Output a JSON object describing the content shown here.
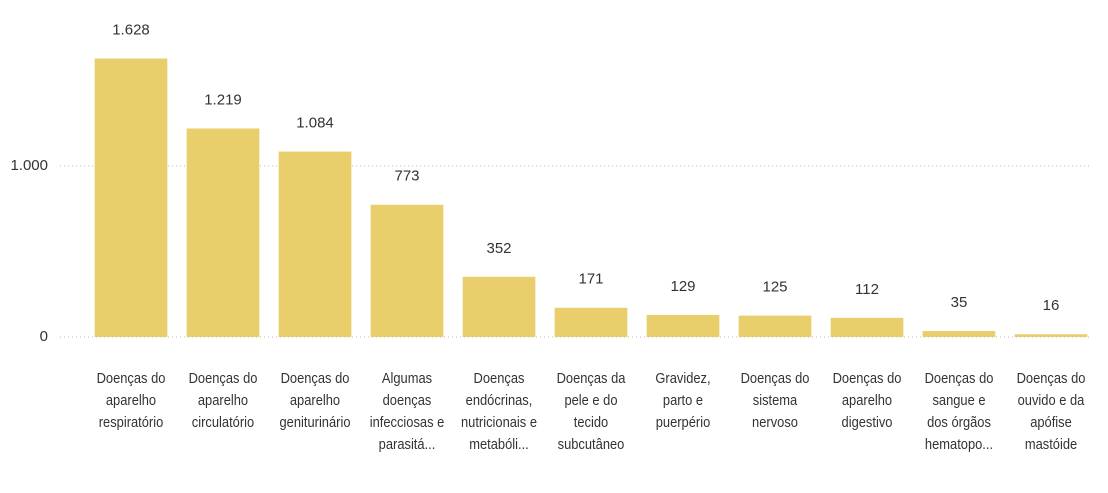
{
  "chart_data": {
    "type": "bar",
    "categories": [
      "Doenças do aparelho respiratório",
      "Doenças do aparelho circulatório",
      "Doenças do aparelho geniturinário",
      "Algumas doenças infecciosas e parasitá...",
      "Doenças endócrinas, nutricionais e metabóli...",
      "Doenças da pele e do tecido subcutâneo",
      "Gravidez, parto e puerpério",
      "Doenças do sistema nervoso",
      "Doenças do aparelho digestivo",
      "Doenças do sangue e dos órgãos hematopo...",
      "Doenças do ouvido e da apófise mastóide"
    ],
    "values": [
      1628,
      1219,
      1084,
      773,
      352,
      171,
      129,
      125,
      112,
      35,
      16
    ],
    "value_labels": [
      "1.628",
      "1.219",
      "1.084",
      "773",
      "352",
      "171",
      "129",
      "125",
      "112",
      "35",
      "16"
    ],
    "color": "#e8cf6c",
    "ylim": [
      0,
      1900
    ],
    "yticks": [
      0,
      {
        "value": 1000,
        "label": "1.000"
      }
    ],
    "grid": true
  }
}
